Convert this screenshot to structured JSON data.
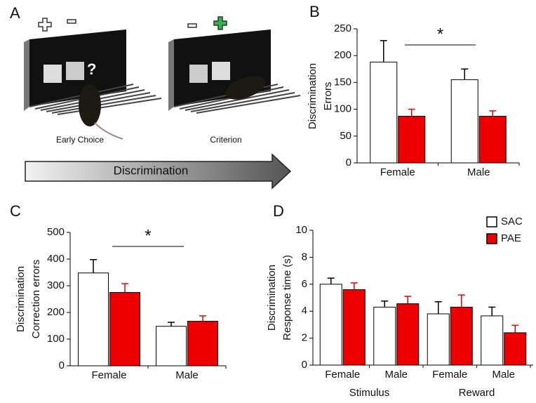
{
  "illustration": {
    "panel_label": "A",
    "captions": [
      "Early Choice",
      "Criterion"
    ],
    "arrow_label": "Discrimination"
  },
  "chart_data": [
    {
      "type": "bar",
      "panel_label": "B",
      "ylabel": [
        "Discrimination",
        "Errors"
      ],
      "categories": [
        "Female",
        "Male"
      ],
      "series": [
        {
          "color": "#ffffff",
          "values": [
            188,
            155
          ],
          "errors": [
            40,
            20
          ]
        },
        {
          "color": "#ee0000",
          "values": [
            87,
            87
          ],
          "errors": [
            13,
            10
          ]
        }
      ],
      "ylim": [
        0,
        250
      ],
      "yticks": [
        0,
        50,
        100,
        150,
        200,
        250
      ],
      "annotation": "*"
    },
    {
      "type": "bar",
      "panel_label": "C",
      "ylabel": [
        "Discrimination",
        "Correction errors"
      ],
      "categories": [
        "Female",
        "Male"
      ],
      "series": [
        {
          "color": "#ffffff",
          "values": [
            348,
            148
          ],
          "errors": [
            50,
            15
          ]
        },
        {
          "color": "#ee0000",
          "values": [
            275,
            167
          ],
          "errors": [
            33,
            20
          ]
        }
      ],
      "ylim": [
        0,
        500
      ],
      "yticks": [
        0,
        100,
        200,
        300,
        400,
        500
      ],
      "annotation": "*"
    },
    {
      "type": "bar",
      "panel_label": "D",
      "ylabel": [
        "Discrimination",
        "Response time (s)"
      ],
      "categories": [
        "Female",
        "Male",
        "Female",
        "Male"
      ],
      "groups": [
        "Stimulus",
        "Reward"
      ],
      "series": [
        {
          "name": "SAC",
          "color": "#ffffff",
          "values": [
            6.0,
            4.3,
            3.8,
            3.65
          ],
          "errors": [
            0.45,
            0.45,
            0.9,
            0.65
          ]
        },
        {
          "name": "PAE",
          "color": "#ee0000",
          "values": [
            5.6,
            4.55,
            4.3,
            2.4
          ],
          "errors": [
            0.5,
            0.55,
            0.9,
            0.55
          ]
        }
      ],
      "ylim": [
        0,
        10
      ],
      "yticks": [
        0,
        2,
        4,
        6,
        8,
        10
      ],
      "legend": "top-right"
    }
  ]
}
